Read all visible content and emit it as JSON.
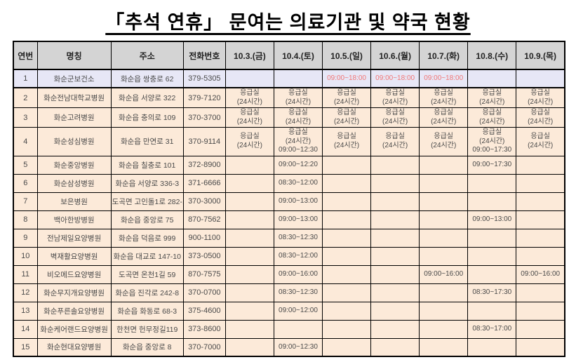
{
  "title": "「추석 연휴」 문여는 의료기관 및 약국 현황",
  "colors": {
    "header_bg": "#d4d4d4",
    "row1_bg": "#e7e7f6",
    "body_bg": "#fcead9",
    "open_time_red": "#f07878",
    "border": "#000000",
    "text": "#4a4a4a"
  },
  "table": {
    "headers": [
      "연번",
      "명칭",
      "주소",
      "전화번호",
      "10.3.(금)",
      "10.4.(토)",
      "10.5.(일)",
      "10.6.(월)",
      "10.7.(화)",
      "10.8.(수)",
      "10.9.(목)"
    ],
    "rows": [
      {
        "no": "1",
        "name": "화순군보건소",
        "address": "화순읍 쌍충로 62",
        "phone": "379-5305",
        "highlight": true,
        "days": [
          "",
          "",
          "09:00~18:00",
          "09:00~18:00",
          "09:00~18:00",
          "",
          ""
        ]
      },
      {
        "no": "2",
        "name": "화순전남대학교병원",
        "address": "화순읍 서양로 322",
        "phone": "379-7120",
        "days": [
          "응급실\n(24시간)",
          "응급실\n(24시간)",
          "응급실\n(24시간)",
          "응급실\n(24시간)",
          "응급실\n(24시간)",
          "응급실\n(24시간)",
          "응급실\n(24시간)"
        ]
      },
      {
        "no": "3",
        "name": "화순고려병원",
        "address": "화순읍 충의로 109",
        "phone": "370-3700",
        "days": [
          "응급실\n(24시간)",
          "응급실\n(24시간)",
          "응급실\n(24시간)",
          "응급실\n(24시간)",
          "응급실\n(24시간)",
          "응급실\n(24시간)",
          "응급실\n(24시간)"
        ]
      },
      {
        "no": "4",
        "name": "화순성심병원",
        "address": "화순읍 만연로 31",
        "phone": "370-9114",
        "days": [
          "응급실\n(24시간)",
          "응급실\n(24시간)\n09:00~12:30",
          "응급실\n(24시간)",
          "응급실\n(24시간)",
          "응급실\n(24시간)",
          "응급실\n(24시간)\n09:00~17:30",
          "응급실\n(24시간)"
        ]
      },
      {
        "no": "5",
        "name": "화순중앙병원",
        "address": "화순읍 칠충로 101",
        "phone": "372-8900",
        "days": [
          "",
          "09:00~12:20",
          "",
          "",
          "",
          "09:00~17:30",
          ""
        ]
      },
      {
        "no": "6",
        "name": "화순삼성병원",
        "address": "화순읍 서양로 336-3",
        "phone": "371-6666",
        "days": [
          "",
          "08:30~12:00",
          "",
          "",
          "",
          "",
          ""
        ]
      },
      {
        "no": "7",
        "name": "보은병원",
        "address": "도곡면 고인돌1로 282-14",
        "phone": "370-3000",
        "days": [
          "",
          "09:00~13:00",
          "",
          "",
          "",
          "",
          ""
        ]
      },
      {
        "no": "8",
        "name": "백아한방병원",
        "address": "화순읍 중앙로 75",
        "phone": "870-7562",
        "days": [
          "",
          "09:00~13:00",
          "",
          "",
          "",
          "09:00~13:00",
          ""
        ]
      },
      {
        "no": "9",
        "name": "전남제일요양병원",
        "address": "화순읍 덕음로 999",
        "phone": "900-1100",
        "days": [
          "",
          "08:30~12:30",
          "",
          "",
          "",
          "",
          ""
        ]
      },
      {
        "no": "10",
        "name": "벽재활요양병원",
        "address": "화순읍 대교로 147-10",
        "phone": "373-0500",
        "days": [
          "",
          "08:30~12:00",
          "",
          "",
          "",
          "",
          ""
        ]
      },
      {
        "no": "11",
        "name": "비오메드요양병원",
        "address": "도곡면 온천1길 59",
        "phone": "870-7575",
        "days": [
          "",
          "09:00~16:00",
          "",
          "",
          "09:00~16:00",
          "",
          "09:00~16:00"
        ]
      },
      {
        "no": "12",
        "name": "화순무지개요양병원",
        "address": "화순읍 진각로 242-8",
        "phone": "370-0700",
        "days": [
          "",
          "08:30~12:30",
          "",
          "",
          "",
          "08:30~17:30",
          ""
        ]
      },
      {
        "no": "13",
        "name": "화순푸른솔요양병원",
        "address": "화순읍 화동로 68-3",
        "phone": "375-4600",
        "days": [
          "",
          "09:00~12:00",
          "",
          "",
          "",
          "",
          ""
        ]
      },
      {
        "no": "14",
        "name": "화순케어랜드요양병원",
        "address": "한천면 헌무정길119",
        "phone": "373-8600",
        "days": [
          "",
          "",
          "",
          "",
          "",
          "08:30~17:00",
          ""
        ]
      },
      {
        "no": "15",
        "name": "화순현대요양병원",
        "address": "화순읍 중앙로 8",
        "phone": "370-7000",
        "days": [
          "",
          "09:00~12:30",
          "",
          "",
          "",
          "",
          ""
        ]
      }
    ]
  }
}
